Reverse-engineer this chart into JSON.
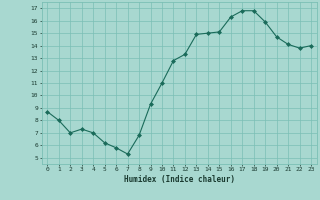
{
  "x": [
    0,
    1,
    2,
    3,
    4,
    5,
    6,
    7,
    8,
    9,
    10,
    11,
    12,
    13,
    14,
    15,
    16,
    17,
    18,
    19,
    20,
    21,
    22,
    23
  ],
  "y": [
    8.7,
    8.0,
    7.0,
    7.3,
    7.0,
    6.2,
    5.8,
    5.3,
    6.8,
    9.3,
    11.0,
    12.8,
    13.3,
    14.9,
    15.0,
    15.1,
    16.3,
    16.8,
    16.8,
    15.9,
    14.7,
    14.1,
    13.8,
    14.0
  ],
  "xlabel": "Humidex (Indice chaleur)",
  "xlim": [
    -0.5,
    23.5
  ],
  "ylim": [
    4.5,
    17.5
  ],
  "yticks": [
    5,
    6,
    7,
    8,
    9,
    10,
    11,
    12,
    13,
    14,
    15,
    16,
    17
  ],
  "xticks": [
    0,
    1,
    2,
    3,
    4,
    5,
    6,
    7,
    8,
    9,
    10,
    11,
    12,
    13,
    14,
    15,
    16,
    17,
    18,
    19,
    20,
    21,
    22,
    23
  ],
  "line_color": "#1a6b5a",
  "marker_color": "#1a6b5a",
  "bg_color": "#a8d8d0",
  "grid_color": "#7bbfb5",
  "tick_label_color": "#1a3a30",
  "xlabel_color": "#1a3a30"
}
